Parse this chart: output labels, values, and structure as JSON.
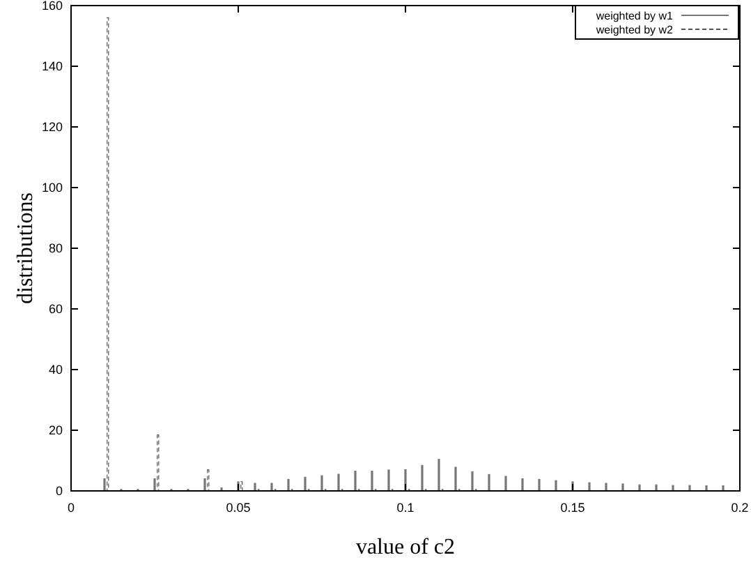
{
  "chart_data": {
    "type": "bar",
    "xlabel": "value of c2",
    "ylabel": "distributions",
    "xlim": [
      0,
      0.2
    ],
    "ylim": [
      0,
      160
    ],
    "xticks": [
      0,
      0.05,
      0.1,
      0.15,
      0.2
    ],
    "yticks": [
      0,
      20,
      40,
      60,
      80,
      100,
      120,
      140,
      160
    ],
    "legend": "top right",
    "grid": false,
    "series": [
      {
        "name": "weighted by w1",
        "color": "#777777",
        "line_style": "solid",
        "x": [
          0.01,
          0.015,
          0.02,
          0.025,
          0.03,
          0.035,
          0.04,
          0.045,
          0.05,
          0.055,
          0.06,
          0.065,
          0.07,
          0.075,
          0.08,
          0.085,
          0.09,
          0.095,
          0.1,
          0.105,
          0.11,
          0.115,
          0.12,
          0.125,
          0.13,
          0.135,
          0.14,
          0.145,
          0.15,
          0.155,
          0.16,
          0.165,
          0.17,
          0.175,
          0.18,
          0.185,
          0.19,
          0.195
        ],
        "values": [
          4,
          0.5,
          0.5,
          4,
          0.5,
          0.5,
          4,
          1,
          3,
          2.5,
          2.5,
          3.8,
          4.5,
          5,
          5.5,
          6.5,
          6.5,
          6.9,
          7,
          8.4,
          10.4,
          7.8,
          6.3,
          5.4,
          4.8,
          4,
          3.8,
          3.4,
          3,
          2.7,
          2.5,
          2.3,
          2,
          2,
          1.8,
          1.8,
          1.7,
          1.7
        ]
      },
      {
        "name": "weighted by w2",
        "color": "#555555",
        "line_style": "dashed",
        "x": [
          0.011,
          0.026,
          0.041,
          0.051,
          0.056,
          0.061,
          0.066,
          0.071,
          0.076,
          0.081,
          0.086,
          0.091,
          0.096,
          0.101,
          0.106,
          0.111,
          0.116,
          0.121
        ],
        "values": [
          156,
          18.5,
          7,
          3,
          0.5,
          0.5,
          0.5,
          0.5,
          0.5,
          0.5,
          0.5,
          0.5,
          0.5,
          0.5,
          0.5,
          0.5,
          0.5,
          0.5
        ]
      }
    ]
  }
}
